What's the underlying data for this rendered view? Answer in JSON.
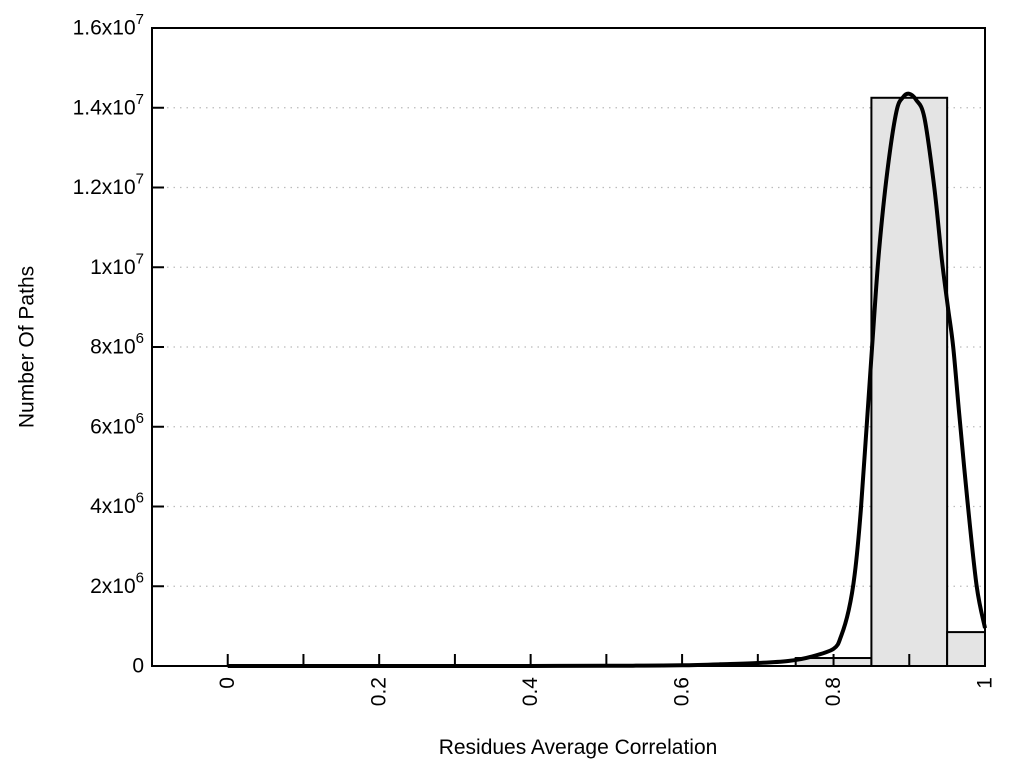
{
  "chart_data": {
    "type": "bar",
    "subtype": "histogram-with-fit-curve",
    "title": "",
    "xlabel": "Residues Average Correlation",
    "ylabel": "Number Of Paths",
    "xlim": [
      -0.1,
      1.0
    ],
    "ylim": [
      0,
      16000000
    ],
    "grid": "horizontal-dotted-at-major-yticks",
    "legend": "none",
    "y_ticks": [
      {
        "value": 0,
        "label": "0",
        "exp": ""
      },
      {
        "value": 2000000,
        "label": "2x10",
        "exp": "6"
      },
      {
        "value": 4000000,
        "label": "4x10",
        "exp": "6"
      },
      {
        "value": 6000000,
        "label": "6x10",
        "exp": "6"
      },
      {
        "value": 8000000,
        "label": "8x10",
        "exp": "6"
      },
      {
        "value": 10000000,
        "label": "1x10",
        "exp": "7"
      },
      {
        "value": 12000000,
        "label": "1.2x10",
        "exp": "7"
      },
      {
        "value": 14000000,
        "label": "1.4x10",
        "exp": "7"
      },
      {
        "value": 16000000,
        "label": "1.6x10",
        "exp": "7"
      }
    ],
    "x_ticks": [
      {
        "value": 0,
        "label": "0"
      },
      {
        "value": 0.1,
        "label": ""
      },
      {
        "value": 0.2,
        "label": "0.2"
      },
      {
        "value": 0.3,
        "label": ""
      },
      {
        "value": 0.4,
        "label": "0.4"
      },
      {
        "value": 0.5,
        "label": ""
      },
      {
        "value": 0.6,
        "label": "0.6"
      },
      {
        "value": 0.7,
        "label": ""
      },
      {
        "value": 0.8,
        "label": "0.8"
      },
      {
        "value": 0.9,
        "label": ""
      },
      {
        "value": 1.0,
        "label": "1"
      }
    ],
    "bars": [
      {
        "from": 0.75,
        "to": 0.85,
        "value": 200000
      },
      {
        "from": 0.85,
        "to": 0.95,
        "value": 14250000
      },
      {
        "from": 0.95,
        "to": 1.0,
        "value": 850000
      }
    ],
    "curve": {
      "name": "fit-curve",
      "points": [
        [
          0.0,
          0
        ],
        [
          0.1,
          0
        ],
        [
          0.2,
          0
        ],
        [
          0.3,
          0
        ],
        [
          0.4,
          1000
        ],
        [
          0.5,
          4000
        ],
        [
          0.55,
          9000
        ],
        [
          0.6,
          18000
        ],
        [
          0.65,
          42000
        ],
        [
          0.7,
          75000
        ],
        [
          0.74,
          125000
        ],
        [
          0.77,
          230000
        ],
        [
          0.8,
          430000
        ],
        [
          0.81,
          750000
        ],
        [
          0.82,
          1400000
        ],
        [
          0.828,
          2300000
        ],
        [
          0.836,
          3900000
        ],
        [
          0.844,
          6100000
        ],
        [
          0.852,
          8300000
        ],
        [
          0.86,
          10400000
        ],
        [
          0.871,
          12400000
        ],
        [
          0.883,
          13900000
        ],
        [
          0.892,
          14270000
        ],
        [
          0.9,
          14350000
        ],
        [
          0.909,
          14200000
        ],
        [
          0.92,
          13750000
        ],
        [
          0.933,
          12000000
        ],
        [
          0.943,
          10200000
        ],
        [
          0.951,
          9000000
        ],
        [
          0.958,
          8000000
        ],
        [
          0.966,
          6300000
        ],
        [
          0.977,
          4100000
        ],
        [
          0.989,
          2000000
        ],
        [
          1.0,
          950000
        ]
      ]
    },
    "colors": {
      "background": "#ffffff",
      "axis": "#000000",
      "text": "#000000",
      "grid": "#bbbbbb",
      "bar_fill": "#e4e4e4",
      "bar_border": "#000000",
      "curve": "#000000"
    }
  }
}
